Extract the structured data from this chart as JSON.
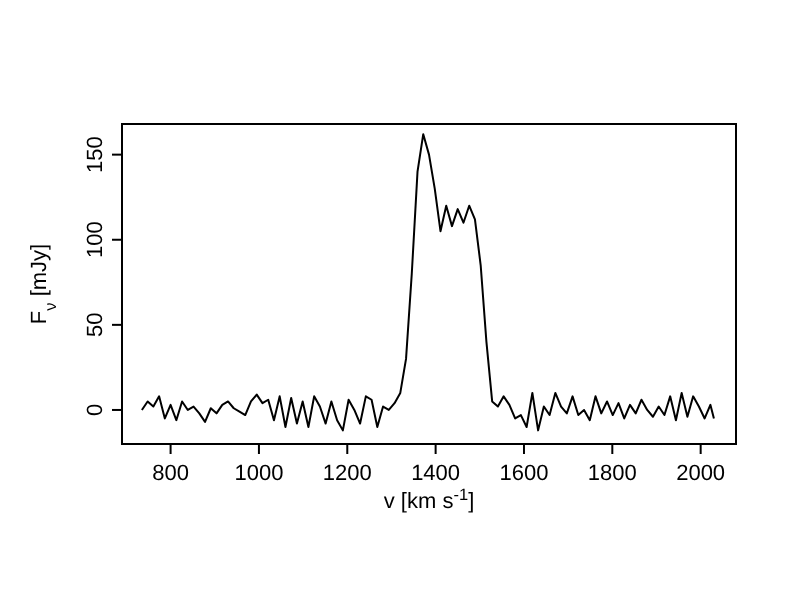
{
  "chart_data": {
    "type": "line",
    "xlabel": "v [km s$^{-1}$]",
    "ylabel": "F$_{ν}$ [mJy]",
    "xlim": [
      690,
      2080
    ],
    "ylim": [
      -20,
      168
    ],
    "xticks": [
      800,
      1000,
      1200,
      1400,
      1600,
      1800,
      2000
    ],
    "yticks": [
      0,
      50,
      100,
      150
    ],
    "grid": false,
    "marker": "none",
    "line_style": "solid",
    "series": [
      {
        "color": "#000000",
        "x": [
          735,
          748,
          761,
          774,
          787,
          800,
          813,
          826,
          839,
          852,
          865,
          878,
          891,
          904,
          917,
          930,
          943,
          956,
          969,
          982,
          995,
          1008,
          1021,
          1034,
          1047,
          1060,
          1073,
          1086,
          1099,
          1112,
          1125,
          1138,
          1151,
          1164,
          1177,
          1190,
          1203,
          1216,
          1229,
          1242,
          1255,
          1268,
          1281,
          1294,
          1307,
          1320,
          1333,
          1346,
          1359,
          1372,
          1385,
          1398,
          1411,
          1424,
          1437,
          1450,
          1463,
          1476,
          1489,
          1502,
          1515,
          1528,
          1541,
          1554,
          1567,
          1580,
          1593,
          1606,
          1619,
          1632,
          1645,
          1658,
          1671,
          1684,
          1697,
          1710,
          1723,
          1736,
          1749,
          1762,
          1775,
          1788,
          1801,
          1814,
          1827,
          1840,
          1853,
          1866,
          1879,
          1892,
          1905,
          1918,
          1931,
          1944,
          1957,
          1970,
          1983,
          1996,
          2009,
          2022,
          2030
        ],
        "values": [
          0,
          5,
          2,
          8,
          -5,
          3,
          -6,
          5,
          0,
          2,
          -2,
          -7,
          1,
          -2,
          3,
          5,
          1,
          -1,
          -3,
          5,
          9,
          4,
          6,
          -6,
          8,
          -10,
          7,
          -8,
          5,
          -10,
          8,
          2,
          -8,
          5,
          -6,
          -12,
          6,
          0,
          -8,
          8,
          6,
          -10,
          2,
          0,
          4,
          10,
          30,
          80,
          140,
          162,
          150,
          130,
          105,
          120,
          108,
          118,
          110,
          120,
          112,
          85,
          40,
          5,
          2,
          8,
          3,
          -5,
          -3,
          -10,
          10,
          -12,
          2,
          -3,
          10,
          2,
          -2,
          8,
          -3,
          0,
          -6,
          8,
          -2,
          5,
          -3,
          4,
          -5,
          3,
          -2,
          6,
          0,
          -4,
          2,
          -3,
          8,
          -6,
          10,
          -4,
          8,
          2,
          -5,
          3,
          -5
        ]
      }
    ]
  }
}
